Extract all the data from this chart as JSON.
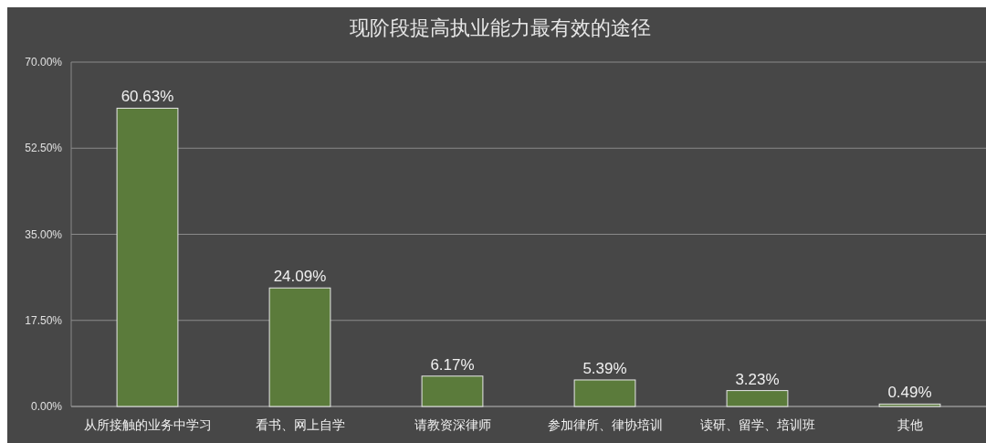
{
  "chart_data": {
    "type": "bar",
    "title": "现阶段提高执业能力最有效的途径",
    "categories": [
      "从所接触的业务中学习",
      "看书、网上自学",
      "请教资深律师",
      "参加律所、律协培训",
      "读研、留学、培训班",
      "其他"
    ],
    "values": [
      60.63,
      24.09,
      6.17,
      5.39,
      3.23,
      0.49
    ],
    "value_labels": [
      "60.63%",
      "24.09%",
      "6.17%",
      "5.39%",
      "3.23%",
      "0.49%"
    ],
    "color": "#5b7b3b",
    "ylim": [
      0,
      70
    ],
    "yticks": [
      {
        "value": 0,
        "label": "0.00%"
      },
      {
        "value": 17.5,
        "label": "17.50%"
      },
      {
        "value": 35,
        "label": "35.00%"
      },
      {
        "value": 52.5,
        "label": "52.50%"
      },
      {
        "value": 70,
        "label": "70.00%"
      }
    ],
    "grid": "y"
  }
}
